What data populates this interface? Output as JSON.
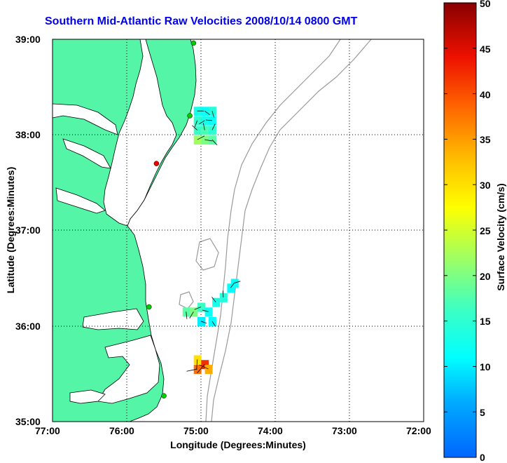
{
  "title": "Southern Mid-Atlantic Raw Velocities 2008/10/14 0800 GMT",
  "xlabel": "Longitude (Degrees:Minutes)",
  "ylabel": "Latitude (Degrees:Minutes)",
  "colorbar_label": "Surface Velocity (cm/s)",
  "x_ticks": [
    "77:00",
    "76:00",
    "75:00",
    "74:00",
    "73:00",
    "72:00"
  ],
  "y_ticks": [
    "39:00",
    "38:00",
    "37:00",
    "36:00",
    "35:00"
  ],
  "colorbar_ticks": [
    "50",
    "45",
    "40",
    "35",
    "30",
    "25",
    "20",
    "15",
    "10",
    "5",
    "0"
  ],
  "colors": {
    "land": "#55f5a8",
    "title": "#0000ee",
    "bathymetry": "#9a9a9a",
    "grid": "#000000"
  },
  "chart_data": {
    "type": "map",
    "lon_range": [
      -77.0,
      -72.0
    ],
    "lat_range": [
      35.0,
      39.0
    ],
    "colorbar_range": [
      0,
      50
    ],
    "grid": true,
    "stations": [
      {
        "lon": -75.1,
        "lat": 38.96,
        "color": "#00cc00"
      },
      {
        "lon": -75.15,
        "lat": 38.2,
        "color": "#00cc00"
      },
      {
        "lon": -75.6,
        "lat": 37.7,
        "color": "#ee0000"
      },
      {
        "lon": -75.7,
        "lat": 36.2,
        "color": "#00cc00"
      },
      {
        "lon": -75.5,
        "lat": 35.27,
        "color": "#00cc00"
      }
    ],
    "velocity_cells": [
      {
        "lon": -75.05,
        "lat": 38.25,
        "speed": 13
      },
      {
        "lon": -74.95,
        "lat": 38.25,
        "speed": 12
      },
      {
        "lon": -74.85,
        "lat": 38.25,
        "speed": 14
      },
      {
        "lon": -75.05,
        "lat": 38.15,
        "speed": 15
      },
      {
        "lon": -74.95,
        "lat": 38.15,
        "speed": 13
      },
      {
        "lon": -74.85,
        "lat": 38.15,
        "speed": 12
      },
      {
        "lon": -75.05,
        "lat": 38.05,
        "speed": 16
      },
      {
        "lon": -74.95,
        "lat": 38.05,
        "speed": 17
      },
      {
        "lon": -74.85,
        "lat": 38.05,
        "speed": 15
      },
      {
        "lon": -75.05,
        "lat": 37.95,
        "speed": 22
      },
      {
        "lon": -74.95,
        "lat": 37.95,
        "speed": 20
      },
      {
        "lon": -74.85,
        "lat": 37.95,
        "speed": 18
      },
      {
        "lon": -75.2,
        "lat": 36.15,
        "speed": 18
      },
      {
        "lon": -75.1,
        "lat": 36.15,
        "speed": 20
      },
      {
        "lon": -75.0,
        "lat": 36.2,
        "speed": 16
      },
      {
        "lon": -74.9,
        "lat": 36.15,
        "speed": 12
      },
      {
        "lon": -74.8,
        "lat": 36.25,
        "speed": 13
      },
      {
        "lon": -74.7,
        "lat": 36.3,
        "speed": 14
      },
      {
        "lon": -74.6,
        "lat": 36.4,
        "speed": 11
      },
      {
        "lon": -74.55,
        "lat": 36.45,
        "speed": 12
      },
      {
        "lon": -75.0,
        "lat": 36.05,
        "speed": 10
      },
      {
        "lon": -74.85,
        "lat": 36.05,
        "speed": 11
      },
      {
        "lon": -75.05,
        "lat": 35.65,
        "speed": 30
      },
      {
        "lon": -74.95,
        "lat": 35.6,
        "speed": 42
      },
      {
        "lon": -75.05,
        "lat": 35.55,
        "speed": 38
      },
      {
        "lon": -74.9,
        "lat": 35.55,
        "speed": 34
      }
    ]
  }
}
